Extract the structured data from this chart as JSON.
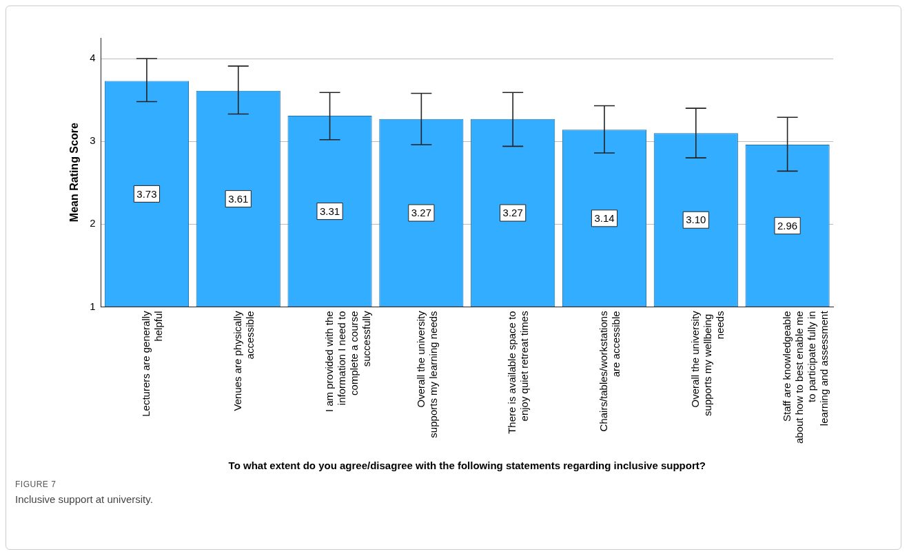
{
  "chart_data": {
    "type": "bar",
    "xlabel": "To what extent do you agree/disagree with the following statements regarding inclusive support?",
    "ylabel": "Mean Rating Score",
    "categories": [
      "Lecturers are generally helpful",
      "Venues are physically accessible",
      "I am provided with the information I need to complete a course successfully",
      "Overall the university supports my learning needs",
      "There is available space to enjoy quiet retreat times",
      "Chairs/tables/workstations are accessible",
      "Overall the university supports my wellbeing  needs",
      "Staff are knowledgeable about how to best enable me to participate fully in learning and assessment"
    ],
    "values": [
      3.73,
      3.61,
      3.31,
      3.27,
      3.27,
      3.14,
      3.1,
      2.96
    ],
    "errors": [
      [
        3.48,
        4.0
      ],
      [
        3.33,
        3.91
      ],
      [
        3.02,
        3.59
      ],
      [
        2.96,
        3.58
      ],
      [
        2.94,
        3.59
      ],
      [
        2.86,
        3.43
      ],
      [
        2.8,
        3.4
      ],
      [
        2.64,
        3.29
      ]
    ],
    "color": "#33adff",
    "ylim": [
      1,
      4.25
    ],
    "yticks": [
      1,
      2,
      3,
      4
    ],
    "value_labels": [
      "3.73",
      "3.61",
      "3.31",
      "3.27",
      "3.27",
      "3.14",
      "3.10",
      "2.96"
    ],
    "grid": "y",
    "legend": false,
    "annotations": [
      "FIGURE 7",
      "Inclusive support at university."
    ]
  }
}
